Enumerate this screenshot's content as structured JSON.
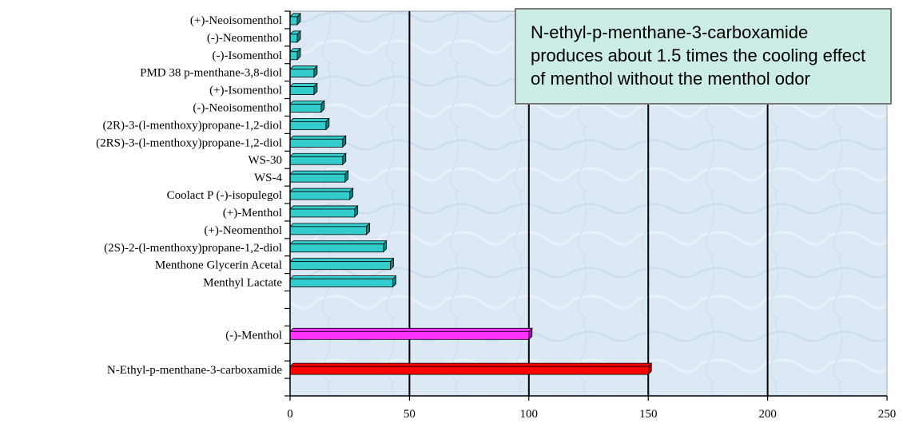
{
  "chart_data": {
    "type": "bar",
    "orientation": "horizontal",
    "categories": [
      "(+)-Neoisomenthol",
      "(-)-Neomenthol",
      "(-)-Isomenthol",
      "PMD 38 p-menthane-3,8-diol",
      "(+)-Isomenthol",
      "(-)-Neoisomenthol",
      "(2R)-3-(l-menthoxy)propane-1,2-diol",
      "(2RS)-3-(l-menthoxy)propane-1,2-diol",
      "WS-30",
      "WS-4",
      "Coolact P (-)-isopulegol",
      "(+)-Menthol",
      "(+)-Neomenthol",
      "(2S)-2-(l-menthoxy)propane-1,2-diol",
      "Menthone Glycerin Acetal",
      "Menthyl Lactate",
      "",
      "",
      "(-)-Menthol",
      "",
      "N-Ethyl-p-menthane-3-carboxamide",
      ""
    ],
    "values": [
      3,
      3,
      3,
      10,
      10,
      13,
      15,
      22,
      22,
      23,
      25,
      27,
      32,
      39,
      42,
      43,
      null,
      null,
      100,
      null,
      150,
      null
    ],
    "bar_colors": [
      "#33cccc",
      "#33cccc",
      "#33cccc",
      "#33cccc",
      "#33cccc",
      "#33cccc",
      "#33cccc",
      "#33cccc",
      "#33cccc",
      "#33cccc",
      "#33cccc",
      "#33cccc",
      "#33cccc",
      "#33cccc",
      "#33cccc",
      "#33cccc",
      null,
      null,
      "#ff33ff",
      null,
      "#ff0000",
      null
    ],
    "xlim": [
      0,
      250
    ],
    "xticks": [
      0,
      50,
      100,
      150,
      200,
      250
    ],
    "grid": "vertical",
    "title": "",
    "xlabel": "",
    "ylabel": ""
  },
  "annotation": {
    "text": "N-ethyl-p-menthane-3-carboxamide produces about 1.5 times the cooling effect of menthol without the menthol odor"
  },
  "colors": {
    "plot_background": "#dce9f5",
    "callout_background": "#ccece6",
    "teal": "#33cccc",
    "magenta": "#ff33ff",
    "red": "#ff0000"
  }
}
